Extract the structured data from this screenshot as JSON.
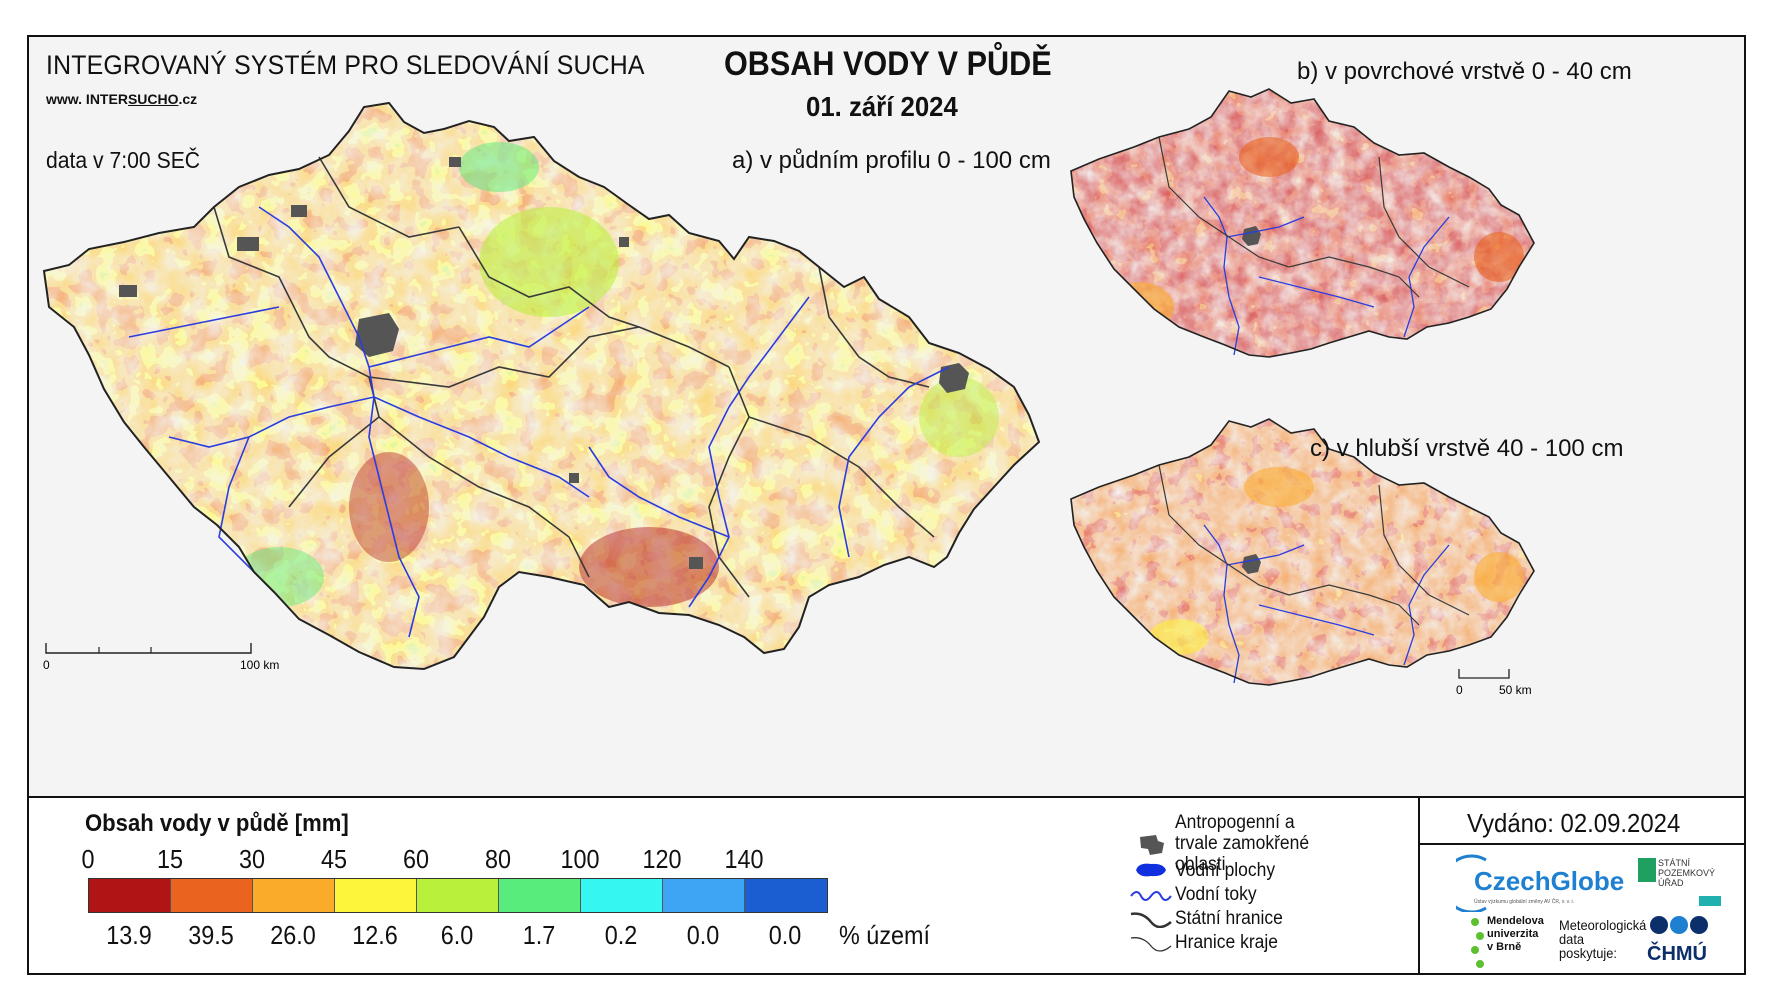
{
  "header": {
    "system_title": "INTEGROVANÝ SYSTÉM PRO SLEDOVÁNÍ SUCHA",
    "website_prefix": "www. INTER",
    "website_mid": "SUCHO",
    "website_suffix": ".cz",
    "data_time": "data v 7:00 SEČ",
    "main_title": "OBSAH VODY V PŮDĚ",
    "date": "01. září 2024"
  },
  "maps": {
    "a_title": "a) v půdním profilu 0 - 100 cm",
    "b_title": "b) v povrchové vrstvě 0 - 40 cm",
    "c_title": "c) v hlubší vrstvě 40 - 100 cm",
    "scale_main": {
      "zero": "0",
      "end": "100 km"
    },
    "scale_small": {
      "zero": "0",
      "end": "50 km"
    }
  },
  "legend": {
    "title": "Obsah vody v půdě  [mm]",
    "ticks": [
      "0",
      "15",
      "30",
      "45",
      "60",
      "80",
      "100",
      "120",
      "140"
    ],
    "classes": [
      {
        "color": "#b01414",
        "percent": "13.9"
      },
      {
        "color": "#ea6420",
        "percent": "39.5"
      },
      {
        "color": "#fbab2a",
        "percent": "26.0"
      },
      {
        "color": "#fdf53a",
        "percent": "12.6"
      },
      {
        "color": "#b8f03c",
        "percent": "6.0"
      },
      {
        "color": "#58ec7c",
        "percent": "1.7"
      },
      {
        "color": "#36f6f2",
        "percent": "0.2"
      },
      {
        "color": "#3ca6f4",
        "percent": "0.0"
      },
      {
        "color": "#1a5ed2",
        "percent": "0.0"
      }
    ],
    "percent_unit": "% území"
  },
  "symbols": [
    {
      "icon": "urban-area-icon",
      "label": "Antropogenní a trvale zamokřené oblasti"
    },
    {
      "icon": "water-body-icon",
      "label": "Vodní plochy"
    },
    {
      "icon": "river-icon",
      "label": "Vodní toky"
    },
    {
      "icon": "state-border-icon",
      "label": "Státní hranice"
    },
    {
      "icon": "region-border-icon",
      "label": "Hranice kraje"
    }
  ],
  "issued": "Vydáno: 02.09.2024",
  "logos": {
    "czechglobe": "CzechGlobe",
    "czechglobe_sub": "Ústav výzkumu globální změny AV ČR, v. v. i.",
    "spu": "STÁTNÍ POZEMKOVÝ ÚŘAD",
    "mendel": "Mendelova univerzita v Brně",
    "meteo": "Meteorologická data poskytuje:",
    "chmu": "ČHMÚ"
  }
}
